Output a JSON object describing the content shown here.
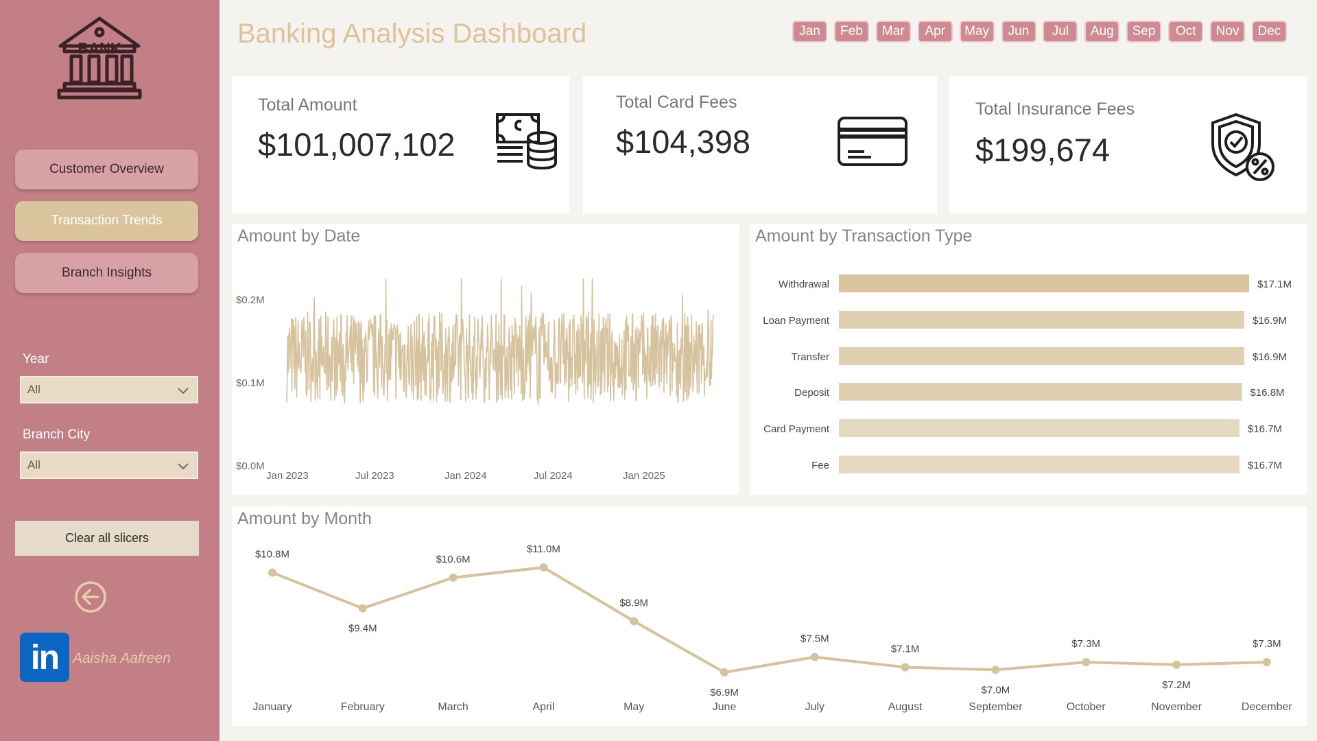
{
  "sidebar": {
    "logo_text": "BANK",
    "nav": [
      {
        "label": "Customer Overview",
        "active": false
      },
      {
        "label": "Transaction Trends",
        "active": true
      },
      {
        "label": "Branch Insights",
        "active": false
      }
    ],
    "slicers": {
      "year": {
        "label": "Year",
        "value": "All"
      },
      "branch_city": {
        "label": "Branch City",
        "value": "All"
      }
    },
    "clear_label": "Clear all slicers",
    "linkedin_text": "in",
    "author": "Aaisha Aafreen"
  },
  "header": {
    "title": "Banking Analysis Dashboard",
    "months": [
      "Jan",
      "Feb",
      "Mar",
      "Apr",
      "May",
      "Jun",
      "Jul",
      "Aug",
      "Sep",
      "Oct",
      "Nov",
      "Dec"
    ]
  },
  "kpis": {
    "total_amount": {
      "label": "Total Amount",
      "value": "$101,007,102",
      "icon": "cash-coins-icon"
    },
    "total_card_fees": {
      "label": "Total Card Fees",
      "value": "$104,398",
      "icon": "credit-card-icon"
    },
    "total_insurance_fees": {
      "label": "Total Insurance Fees",
      "value": "$199,674",
      "icon": "shield-percent-icon"
    }
  },
  "colors": {
    "accent": "#d9c49e",
    "sidebar": "#c27f86",
    "line": "#d6c29d"
  },
  "chart_data": [
    {
      "id": "amount-by-date",
      "type": "line",
      "title": "Amount by Date",
      "x_ticks": [
        "Jan 2023",
        "Jul 2023",
        "Jan 2024",
        "Jul 2024",
        "Jan 2025"
      ],
      "y_ticks": [
        "$0.0M",
        "$0.1M",
        "$0.2M"
      ],
      "ylim": [
        0,
        0.2
      ],
      "series": [
        {
          "description_range": [
            0.05,
            0.22
          ],
          "typical": 0.13
        }
      ]
    },
    {
      "id": "amount-by-transaction-type",
      "type": "bar",
      "title": "Amount by Transaction Type",
      "categories": [
        "Withdrawal",
        "Loan Payment",
        "Transfer",
        "Deposit",
        "Card Payment",
        "Fee"
      ],
      "values": [
        17.1,
        16.9,
        16.9,
        16.8,
        16.7,
        16.7
      ],
      "labels": [
        "$17.1M",
        "$16.9M",
        "$16.9M",
        "$16.8M",
        "$16.7M",
        "$16.7M"
      ]
    },
    {
      "id": "amount-by-month",
      "type": "line",
      "title": "Amount by Month",
      "categories": [
        "January",
        "February",
        "March",
        "April",
        "May",
        "June",
        "July",
        "August",
        "September",
        "October",
        "November",
        "December"
      ],
      "values": [
        10.8,
        9.4,
        10.6,
        11.0,
        8.9,
        6.9,
        7.5,
        7.1,
        7.0,
        7.3,
        7.2,
        7.3
      ],
      "labels": [
        "$10.8M",
        "$9.4M",
        "$10.6M",
        "$11.0M",
        "$8.9M",
        "$6.9M",
        "$7.5M",
        "$7.1M",
        "$7.0M",
        "$7.3M",
        "$7.2M",
        "$7.3M"
      ]
    }
  ]
}
